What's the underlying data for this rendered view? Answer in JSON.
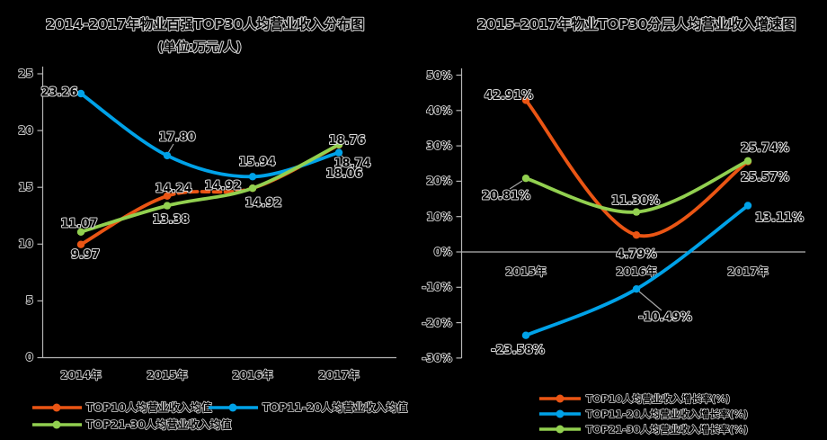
{
  "page": {
    "background": "#000000"
  },
  "colors": {
    "orange": "#ea5514",
    "blue": "#00a2e8",
    "green": "#92d050",
    "leader": "#a6a6a6",
    "axis": "#b5b5b5"
  },
  "chart_data": [
    {
      "type": "line",
      "title": "2014-2017年物业百强TOP30人均营业收入分布图",
      "subtitle": "(单位:万元/人)",
      "categories": [
        "2014年",
        "2015年",
        "2016年",
        "2017年"
      ],
      "y_tick_labels": [
        "25",
        "20",
        "15",
        "10",
        "5",
        "0"
      ],
      "ylim": [
        0,
        25
      ],
      "grid": false,
      "legend_position": "bottom",
      "series": [
        {
          "name": "TOP10人均营业收入均值",
          "color_key": "orange",
          "values": [
            9.97,
            14.24,
            14.92,
            18.74
          ],
          "point_labels": [
            "9.97",
            "14.24",
            "14.92",
            "18.74"
          ],
          "dashed_segments": [
            1
          ]
        },
        {
          "name": "TOP11-20人均营业收入均值",
          "color_key": "blue",
          "values": [
            23.26,
            17.8,
            15.94,
            18.06
          ],
          "point_labels": [
            "23.26",
            "17.80",
            "15.94",
            "18.06"
          ]
        },
        {
          "name": "TOP21-30人均营业收入均值",
          "color_key": "green",
          "values": [
            11.07,
            13.38,
            14.92,
            18.76
          ],
          "point_labels": [
            "11.07",
            "13.38",
            "14.92",
            "18.76"
          ]
        }
      ]
    },
    {
      "type": "line",
      "title": "2015-2017年物业TOP30分层人均营业收入增速图",
      "categories": [
        "2015年",
        "2016年",
        "2017年"
      ],
      "y_tick_labels": [
        "50%",
        "40%",
        "30%",
        "20%",
        "10%",
        "0%",
        "-10%",
        "-20%",
        "-30%"
      ],
      "ylim": [
        -30,
        50
      ],
      "grid": false,
      "legend_position": "bottom",
      "series": [
        {
          "name": "TOP10人均营业收入增长率(%)",
          "color_key": "orange",
          "values": [
            42.91,
            4.79,
            25.57
          ],
          "point_labels": [
            "42.91%",
            "4.79%",
            "25.57%"
          ]
        },
        {
          "name": "TOP11-20人均营业收入增长率(%)",
          "color_key": "blue",
          "values": [
            -23.58,
            -10.49,
            13.11
          ],
          "point_labels": [
            "-23.58%",
            "-10.49%",
            "13.11%"
          ]
        },
        {
          "name": "TOP21-30人均营业收入增长率(%)",
          "color_key": "green",
          "values": [
            20.81,
            11.3,
            25.74
          ],
          "point_labels": [
            "20.81%",
            "11.30%",
            "25.74%"
          ]
        }
      ]
    }
  ]
}
